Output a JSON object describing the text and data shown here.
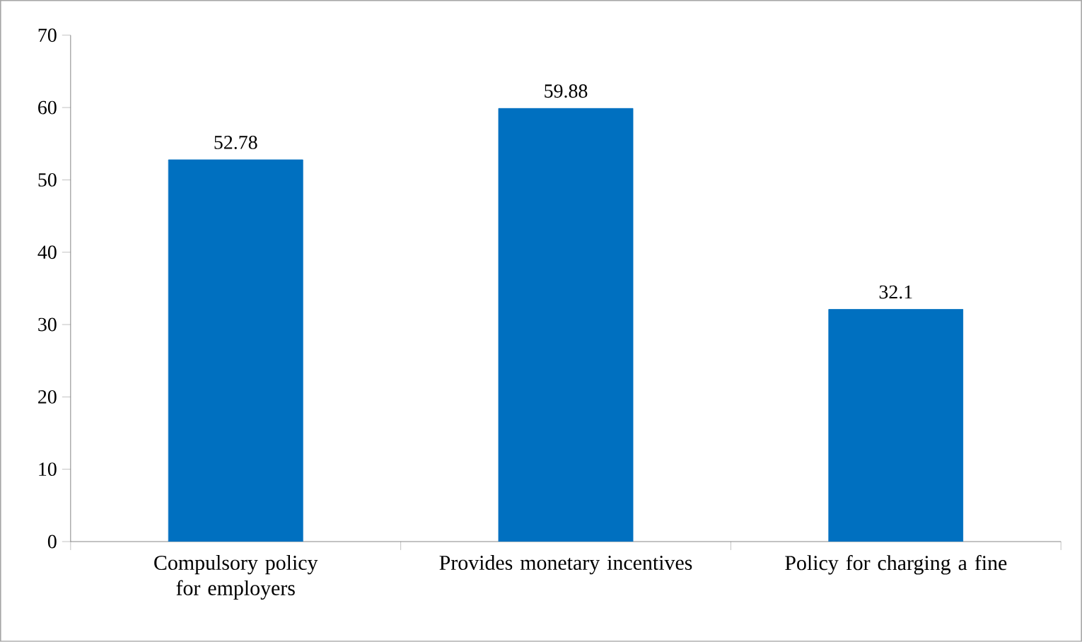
{
  "chart_data": {
    "type": "bar",
    "categories": [
      "Compulsory policy for employers",
      "Provides monetary incentives",
      "Policy for charging a fine"
    ],
    "values": [
      52.78,
      59.88,
      32.1
    ],
    "value_labels": [
      "52.78",
      "59.88",
      "32.1"
    ],
    "color": "#0070c0",
    "ylim": [
      0,
      70
    ],
    "yticks": [
      0,
      10,
      20,
      30,
      40,
      50,
      60,
      70
    ]
  }
}
